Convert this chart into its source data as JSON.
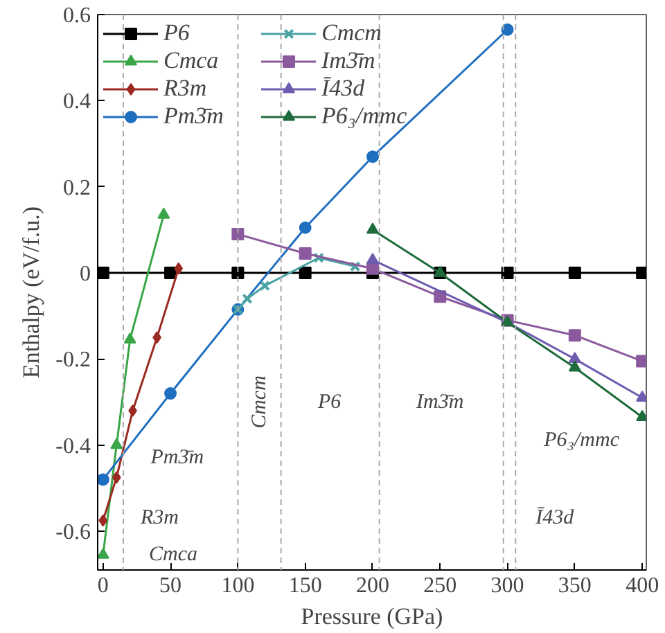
{
  "chart_data": {
    "type": "line",
    "xlabel": "Pressure (GPa)",
    "ylabel": "Enthalpy (eV/f.u.)",
    "xlim": [
      -4,
      403
    ],
    "ylim": [
      -0.69,
      0.6
    ],
    "xticks": [
      0,
      50,
      100,
      150,
      200,
      250,
      300,
      350,
      400
    ],
    "yticks": [
      {
        "value": -0.6,
        "label": "-0.6"
      },
      {
        "value": -0.4,
        "label": "-0.4"
      },
      {
        "value": -0.2,
        "label": "-0.2"
      },
      0,
      {
        "value": 0.2,
        "label": "0.2"
      },
      {
        "value": 0.4,
        "label": "0.4"
      },
      {
        "value": 0.6,
        "label": "0.6"
      }
    ],
    "grid": false,
    "legend": "top left",
    "series": [
      {
        "name": "P6",
        "color": "#000000",
        "marker": "square",
        "x": [
          0,
          50,
          100,
          150,
          200,
          250,
          300,
          350,
          400
        ],
        "values": [
          0,
          0,
          0,
          0,
          0,
          0,
          0,
          0,
          0
        ]
      },
      {
        "name": "Cmca",
        "color": "#3aa648",
        "marker": "triangle",
        "x": [
          0,
          10,
          20,
          45
        ],
        "values": [
          -0.655,
          -0.4,
          -0.155,
          0.135
        ]
      },
      {
        "name": "R3m",
        "color": "#9b2a22",
        "marker": "diamond",
        "x": [
          0,
          10,
          22,
          40,
          56
        ],
        "values": [
          -0.575,
          -0.475,
          -0.32,
          -0.15,
          0.01
        ]
      },
      {
        "name": "Pm3̄m",
        "color": "#1f6fc0",
        "marker": "circle",
        "x": [
          0,
          50,
          100,
          150,
          200,
          300
        ],
        "values": [
          -0.48,
          -0.28,
          -0.085,
          0.105,
          0.27,
          0.565
        ]
      },
      {
        "name": "Cmcm",
        "color": "#4aa3a3",
        "marker": "cross",
        "x": [
          100,
          107,
          120,
          160,
          187
        ],
        "values": [
          -0.085,
          -0.06,
          -0.03,
          0.035,
          0.015
        ]
      },
      {
        "name": "Im3̄m",
        "color": "#8b5a9e",
        "marker": "square",
        "x": [
          100,
          150,
          200,
          250,
          300,
          350,
          400
        ],
        "values": [
          0.09,
          0.045,
          0.01,
          -0.055,
          -0.11,
          -0.145,
          -0.205
        ]
      },
      {
        "name": "Ī43d",
        "color": "#6f5cb0",
        "marker": "triangle",
        "x": [
          200,
          300,
          350,
          400
        ],
        "values": [
          0.03,
          -0.115,
          -0.2,
          -0.29
        ]
      },
      {
        "name": "P6₃/mmc",
        "color": "#1e6b3c",
        "marker": "triangle",
        "x": [
          200,
          250,
          300,
          350,
          400
        ],
        "values": [
          0.1,
          0,
          -0.115,
          -0.22,
          -0.335
        ]
      }
    ],
    "ref_lines": [
      {
        "axis": "x",
        "value": 15,
        "color": "#aaaaaa",
        "line_style": "dashed"
      },
      {
        "axis": "x",
        "value": 100,
        "color": "#aaaaaa",
        "line_style": "dashed"
      },
      {
        "axis": "x",
        "value": 132,
        "color": "#aaaaaa",
        "line_style": "dashed"
      },
      {
        "axis": "x",
        "value": 205,
        "color": "#aaaaaa",
        "line_style": "dashed"
      },
      {
        "axis": "x",
        "value": 297,
        "color": "#aaaaaa",
        "line_style": "dashed"
      },
      {
        "axis": "x",
        "value": 306,
        "color": "#aaaaaa",
        "line_style": "dashed"
      }
    ],
    "annotations": [
      "Pm3̄m",
      "R3m",
      "Cmca",
      "Cmcm",
      "P6",
      "Im3̄m",
      "P6₃/mmc",
      "Ī43d"
    ]
  }
}
